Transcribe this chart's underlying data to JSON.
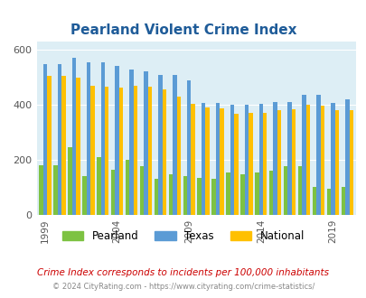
{
  "title": "Pearland Violent Crime Index",
  "years": [
    1999,
    2000,
    2001,
    2002,
    2003,
    2004,
    2005,
    2006,
    2007,
    2008,
    2009,
    2010,
    2011,
    2012,
    2013,
    2014,
    2015,
    2016,
    2017,
    2018,
    2019,
    2020
  ],
  "pearland": [
    180,
    180,
    245,
    140,
    210,
    162,
    200,
    175,
    130,
    148,
    140,
    133,
    130,
    155,
    148,
    155,
    160,
    175,
    175,
    100,
    95,
    100
  ],
  "texas": [
    548,
    548,
    572,
    555,
    555,
    543,
    530,
    522,
    510,
    510,
    490,
    408,
    408,
    400,
    400,
    403,
    410,
    410,
    437,
    437,
    408,
    420
  ],
  "national": [
    504,
    504,
    498,
    470,
    465,
    463,
    470,
    465,
    455,
    430,
    405,
    390,
    388,
    366,
    372,
    372,
    380,
    383,
    400,
    397,
    381,
    381
  ],
  "xtick_years": [
    1999,
    2004,
    2009,
    2014,
    2019
  ],
  "yticks": [
    0,
    200,
    400,
    600
  ],
  "color_pearland": "#7dc242",
  "color_texas": "#5b9bd5",
  "color_national": "#ffc000",
  "bg_color": "#ddeef5",
  "grid_color": "#ffffff",
  "ylim": [
    0,
    630
  ],
  "subtitle": "Crime Index corresponds to incidents per 100,000 inhabitants",
  "footer": "© 2024 CityRating.com - https://www.cityrating.com/crime-statistics/",
  "title_color": "#1f5c99",
  "subtitle_color": "#cc0000",
  "footer_color": "#888888"
}
